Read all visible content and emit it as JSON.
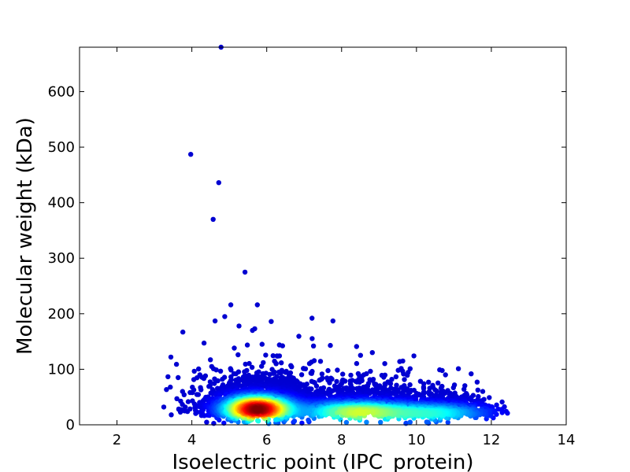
{
  "chart_data": {
    "type": "scatter",
    "title": "",
    "xlabel": "Isoelectric point (IPC_protein)",
    "ylabel": "Molecular weight (kDa)",
    "xlim": [
      1,
      14
    ],
    "ylim": [
      0,
      680
    ],
    "xticks": [
      2,
      4,
      6,
      8,
      10,
      12,
      14
    ],
    "yticks": [
      0,
      100,
      200,
      300,
      400,
      500,
      600
    ],
    "grid": false,
    "legend": "none",
    "colormap": "jet (density)",
    "outliers": [
      {
        "x": 4.78,
        "y": 680
      },
      {
        "x": 3.97,
        "y": 487
      },
      {
        "x": 4.72,
        "y": 436
      },
      {
        "x": 4.57,
        "y": 370
      },
      {
        "x": 5.42,
        "y": 275
      },
      {
        "x": 5.04,
        "y": 216
      },
      {
        "x": 5.75,
        "y": 216
      },
      {
        "x": 4.88,
        "y": 195
      },
      {
        "x": 4.62,
        "y": 187
      },
      {
        "x": 6.12,
        "y": 186
      },
      {
        "x": 3.76,
        "y": 167
      },
      {
        "x": 7.21,
        "y": 192
      },
      {
        "x": 7.77,
        "y": 187
      },
      {
        "x": 5.26,
        "y": 178
      },
      {
        "x": 5.62,
        "y": 170
      },
      {
        "x": 5.68,
        "y": 173
      },
      {
        "x": 7.25,
        "y": 142
      },
      {
        "x": 8.4,
        "y": 141
      },
      {
        "x": 8.82,
        "y": 130
      },
      {
        "x": 3.59,
        "y": 109
      },
      {
        "x": 4.53,
        "y": 105
      },
      {
        "x": 9.83,
        "y": 101
      },
      {
        "x": 11.12,
        "y": 101
      },
      {
        "x": 10.62,
        "y": 99
      },
      {
        "x": 3.25,
        "y": 32
      },
      {
        "x": 12.43,
        "y": 21
      },
      {
        "x": 3.45,
        "y": 18
      }
    ]
  }
}
